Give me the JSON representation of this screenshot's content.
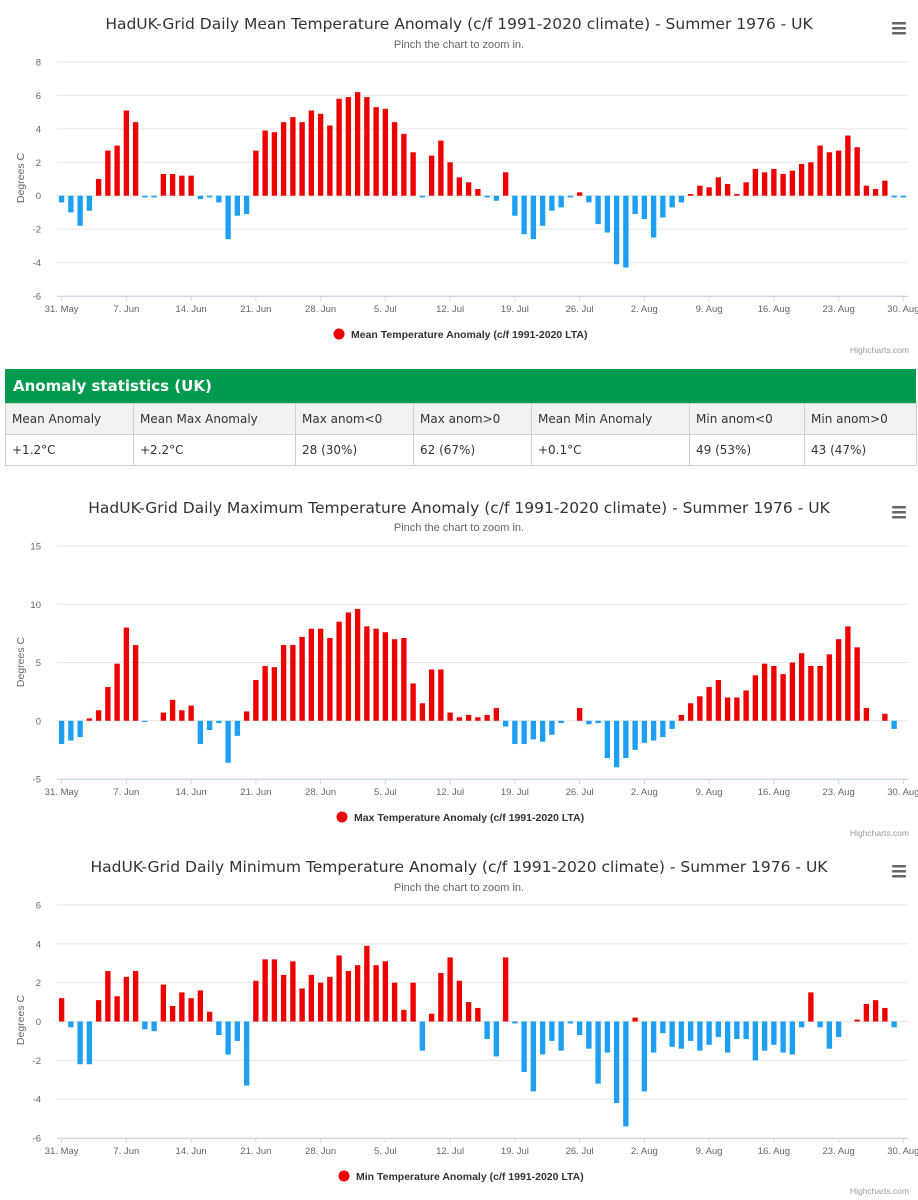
{
  "charts": [
    {
      "title": "HadUK-Grid Daily Mean Temperature Anomaly (c/f 1991-2020 climate) - Summer 1976 - UK",
      "subtitle": "Pinch the chart to zoom in.",
      "credits": "Highcharts.com"
    },
    {
      "title": "HadUK-Grid Daily Maximum Temperature Anomaly (c/f 1991-2020 climate) - Summer 1976 - UK",
      "subtitle": "Pinch the chart to zoom in.",
      "credits": "Highcharts.com"
    },
    {
      "title": "HadUK-Grid Daily Minimum Temperature Anomaly (c/f 1991-2020 climate) - Summer 1976 - UK",
      "subtitle": "Pinch the chart to zoom in.",
      "credits": "Highcharts.com"
    }
  ],
  "stats": {
    "title": "Anomaly statistics (UK)",
    "headers": [
      "Mean Anomaly",
      "Mean Max Anomaly",
      "Max anom<0",
      "Max anom>0",
      "Mean Min Anomaly",
      "Min anom<0",
      "Min anom>0"
    ],
    "values": [
      "+1.2°C",
      "+2.2°C",
      "28 (30%)",
      "62 (67%)",
      "+0.1°C",
      "49 (53%)",
      "43 (47%)"
    ]
  },
  "colors": {
    "positive": "#ee0000",
    "negative": "#1e9ff2",
    "stats_header": "#009a4e"
  },
  "chart_data": [
    {
      "type": "bar",
      "title": "HadUK-Grid Daily Mean Temperature Anomaly (c/f 1991-2020 climate) - Summer 1976 - UK",
      "ylabel": "Degrees C",
      "ylim": [
        -6,
        8
      ],
      "yticks": [
        -6,
        -4,
        -2,
        0,
        2,
        4,
        6,
        8
      ],
      "x_start": "31 May 1976",
      "x_ticks": [
        "31. May",
        "7. Jun",
        "14. Jun",
        "21. Jun",
        "28. Jun",
        "5. Jul",
        "12. Jul",
        "19. Jul",
        "26. Jul",
        "2. Aug",
        "9. Aug",
        "16. Aug",
        "23. Aug",
        "30. Aug"
      ],
      "series": [
        {
          "name": "Mean Temperature Anomaly (c/f 1991-2020 LTA)",
          "values": [
            -0.4,
            -1.0,
            -1.8,
            -0.9,
            1.0,
            2.7,
            3.0,
            5.1,
            4.4,
            -0.1,
            -0.1,
            1.3,
            1.3,
            1.2,
            1.2,
            -0.2,
            -0.1,
            -0.4,
            -2.6,
            -1.2,
            -1.1,
            2.7,
            3.9,
            3.8,
            4.4,
            4.7,
            4.4,
            5.1,
            4.9,
            4.2,
            5.8,
            5.9,
            6.2,
            5.9,
            5.3,
            5.2,
            4.4,
            3.7,
            2.6,
            -0.1,
            2.4,
            3.3,
            2.0,
            1.1,
            0.8,
            0.4,
            -0.1,
            -0.3,
            1.4,
            -1.2,
            -2.3,
            -2.6,
            -1.8,
            -0.9,
            -0.7,
            -0.1,
            0.2,
            -0.4,
            -1.7,
            -2.2,
            -4.1,
            -4.3,
            -1.1,
            -1.4,
            -2.5,
            -1.3,
            -0.7,
            -0.4,
            0.1,
            0.6,
            0.5,
            1.1,
            0.7,
            0.1,
            0.8,
            1.6,
            1.4,
            1.6,
            1.3,
            1.5,
            1.9,
            2.0,
            3.0,
            2.6,
            2.7,
            3.6,
            2.9,
            0.6,
            0.4,
            0.9,
            -0.1,
            -0.1
          ]
        }
      ],
      "legend": "bottom-center",
      "grid": true
    },
    {
      "type": "bar",
      "title": "HadUK-Grid Daily Maximum Temperature Anomaly (c/f 1991-2020 climate) - Summer 1976 - UK",
      "ylabel": "Degrees C",
      "ylim": [
        -5,
        15
      ],
      "yticks": [
        -5,
        0,
        5,
        10,
        15
      ],
      "x_start": "31 May 1976",
      "x_ticks": [
        "31. May",
        "7. Jun",
        "14. Jun",
        "21. Jun",
        "28. Jun",
        "5. Jul",
        "12. Jul",
        "19. Jul",
        "26. Jul",
        "2. Aug",
        "9. Aug",
        "16. Aug",
        "23. Aug",
        "30. Aug"
      ],
      "series": [
        {
          "name": "Max Temperature Anomaly (c/f 1991-2020 LTA)",
          "values": [
            -2.0,
            -1.7,
            -1.4,
            0.2,
            0.9,
            2.9,
            4.9,
            8.0,
            6.5,
            -0.1,
            0,
            0.7,
            1.8,
            0.9,
            1.3,
            -2.0,
            -0.8,
            -0.2,
            -3.6,
            -1.3,
            0.8,
            3.5,
            4.7,
            4.6,
            6.5,
            6.5,
            7.2,
            7.9,
            7.9,
            7.1,
            8.5,
            9.3,
            9.6,
            8.1,
            7.9,
            7.6,
            7.0,
            7.1,
            3.2,
            1.5,
            4.4,
            4.4,
            0.7,
            0.3,
            0.5,
            0.3,
            0.5,
            1.1,
            -0.5,
            -2.0,
            -2.0,
            -1.6,
            -1.8,
            -1.2,
            -0.2,
            0,
            1.1,
            -0.3,
            -0.2,
            -3.2,
            -4.0,
            -3.2,
            -2.5,
            -1.9,
            -1.7,
            -1.4,
            -0.7,
            0.5,
            1.5,
            2.1,
            2.9,
            3.5,
            2.0,
            2.0,
            2.6,
            3.9,
            4.9,
            4.7,
            4.0,
            5.0,
            5.8,
            4.7,
            4.7,
            5.7,
            7.0,
            8.1,
            6.3,
            1.1,
            0,
            0.6,
            -0.7,
            0
          ]
        }
      ],
      "legend": "bottom-center",
      "grid": true
    },
    {
      "type": "bar",
      "title": "HadUK-Grid Daily Minimum Temperature Anomaly (c/f 1991-2020 climate) - Summer 1976 - UK",
      "ylabel": "Degrees C",
      "ylim": [
        -6,
        6
      ],
      "yticks": [
        -6,
        -4,
        -2,
        0,
        2,
        4,
        6
      ],
      "x_start": "31 May 1976",
      "x_ticks": [
        "31. May",
        "7. Jun",
        "14. Jun",
        "21. Jun",
        "28. Jun",
        "5. Jul",
        "12. Jul",
        "19. Jul",
        "26. Jul",
        "2. Aug",
        "9. Aug",
        "16. Aug",
        "23. Aug",
        "30. Aug"
      ],
      "series": [
        {
          "name": "Min Temperature Anomaly (c/f 1991-2020 LTA)",
          "values": [
            1.2,
            -0.3,
            -2.2,
            -2.2,
            1.1,
            2.6,
            1.3,
            2.3,
            2.6,
            -0.4,
            -0.5,
            1.9,
            0.8,
            1.5,
            1.2,
            1.6,
            0.5,
            -0.7,
            -1.7,
            -1.0,
            -3.3,
            2.1,
            3.2,
            3.2,
            2.4,
            3.1,
            1.7,
            2.4,
            2.0,
            2.3,
            3.4,
            2.6,
            2.9,
            3.9,
            2.9,
            3.1,
            2.0,
            0.6,
            2.0,
            -1.5,
            0.4,
            2.5,
            3.3,
            2.1,
            1.0,
            0.7,
            -0.9,
            -1.8,
            3.3,
            -0.1,
            -2.6,
            -3.6,
            -1.7,
            -1.0,
            -1.5,
            -0.1,
            -0.7,
            -1.4,
            -3.2,
            -1.6,
            -4.2,
            -5.4,
            0.2,
            -3.6,
            -1.6,
            -0.6,
            -1.3,
            -1.4,
            -1.0,
            -1.5,
            -1.2,
            -0.8,
            -1.6,
            -0.9,
            -0.9,
            -2.0,
            -1.5,
            -1.2,
            -1.6,
            -1.7,
            -0.3,
            1.5,
            -0.3,
            -1.4,
            -0.8,
            0,
            0.1,
            0.9,
            1.1,
            0.7,
            -0.3,
            0
          ]
        }
      ],
      "legend": "bottom-center",
      "grid": true
    }
  ]
}
